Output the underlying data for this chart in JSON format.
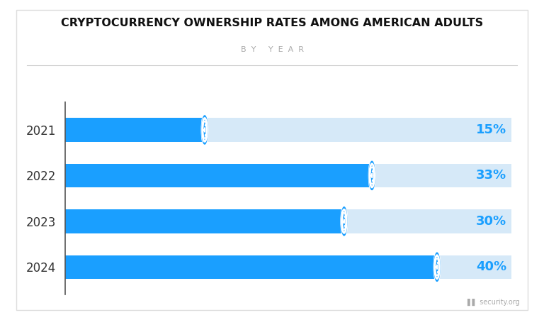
{
  "title": "CRYPTOCURRENCY OWNERSHIP RATES AMONG AMERICAN ADULTS",
  "subtitle": "BY YEAR",
  "years": [
    "2021",
    "2022",
    "2023",
    "2024"
  ],
  "values": [
    15,
    33,
    30,
    40
  ],
  "bar_color_solid": "#1A9FFF",
  "bar_color_light": "#D6E9F8",
  "label_color": "#1A9FFF",
  "title_color": "#111111",
  "subtitle_color": "#AAAAAA",
  "background_color": "#FFFFFF",
  "watermark": "security.org",
  "bar_height": 0.52,
  "xlim": [
    0,
    48
  ]
}
